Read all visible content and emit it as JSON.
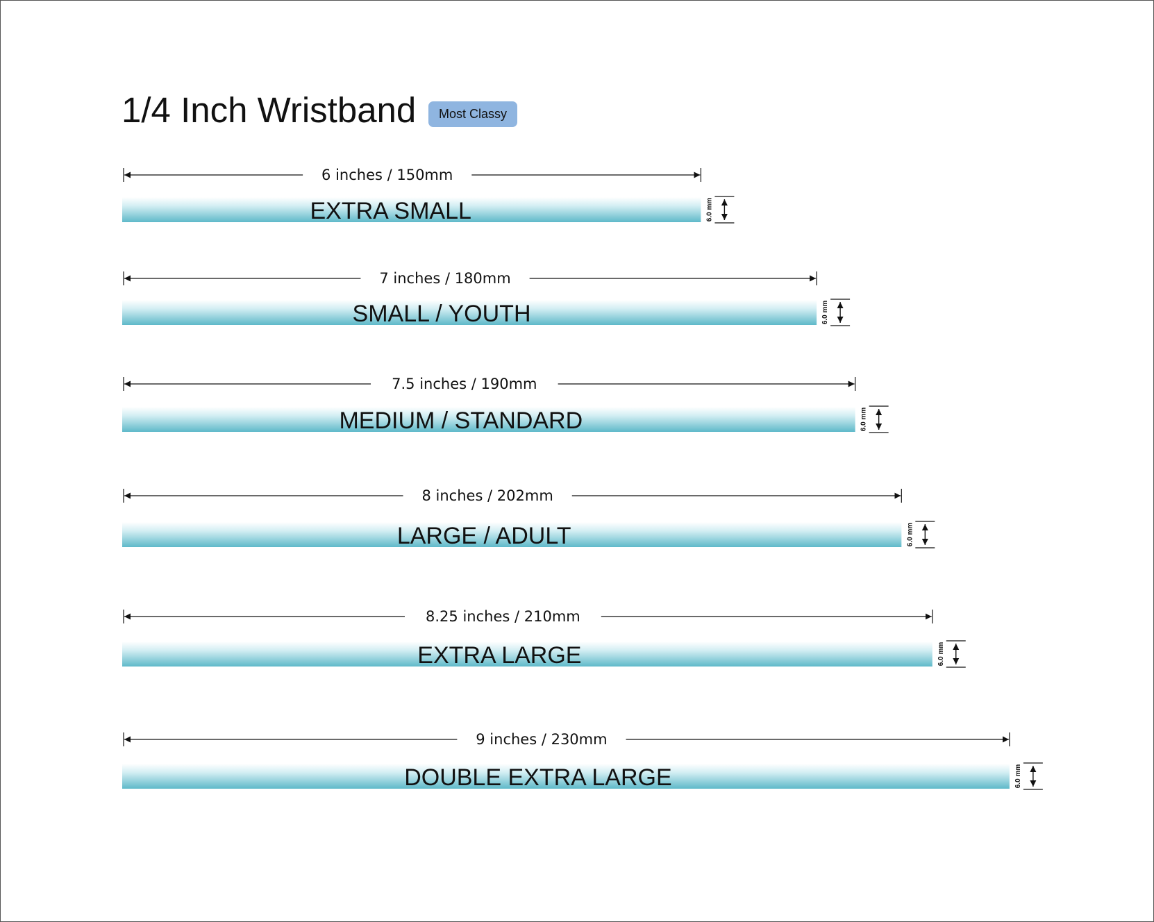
{
  "title": "1/4 Inch Wristband",
  "badge": "Most Classy",
  "band_color": "#5fb9c9",
  "sizes": [
    {
      "name": "EXTRA SMALL",
      "length_label": "6 inches / 150mm",
      "length_mm": 150,
      "thickness_label": "6.0 mm"
    },
    {
      "name": "SMALL / YOUTH",
      "length_label": "7 inches / 180mm",
      "length_mm": 180,
      "thickness_label": "6.0 mm"
    },
    {
      "name": "MEDIUM / STANDARD",
      "length_label": "7.5 inches / 190mm",
      "length_mm": 190,
      "thickness_label": "6.0 mm"
    },
    {
      "name": "LARGE / ADULT",
      "length_label": "8 inches / 202mm",
      "length_mm": 202,
      "thickness_label": "6.0 mm"
    },
    {
      "name": "EXTRA LARGE",
      "length_label": "8.25 inches / 210mm",
      "length_mm": 210,
      "thickness_label": "6.0 mm"
    },
    {
      "name": "DOUBLE EXTRA LARGE",
      "length_label": "9 inches / 230mm",
      "length_mm": 230,
      "thickness_label": "6.0 mm"
    }
  ]
}
